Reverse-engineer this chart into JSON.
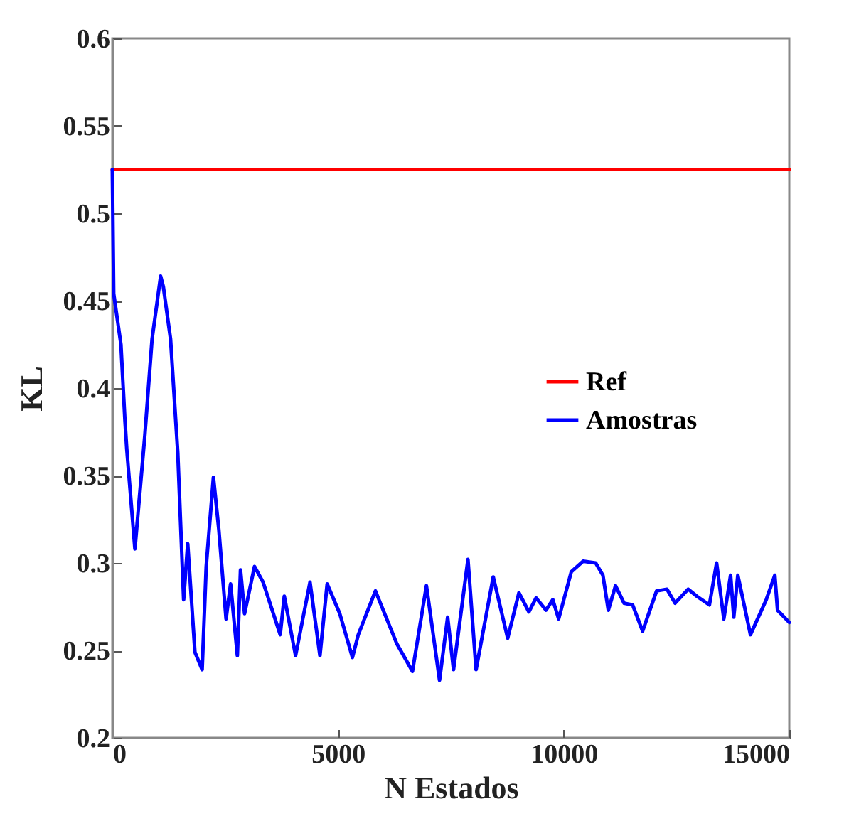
{
  "chart_data": {
    "type": "line",
    "xlabel": "N Estados",
    "ylabel": "KL",
    "xlim": [
      0,
      15000
    ],
    "xticks": [
      0,
      5000,
      10000,
      15000
    ],
    "ylim": [
      0.2,
      0.6
    ],
    "yticks": [
      0.2,
      0.25,
      0.3,
      0.35,
      0.4,
      0.45,
      0.5,
      0.55,
      0.6
    ],
    "grid": false,
    "legend": "right",
    "line_style": "solid",
    "marker": "none",
    "series": [
      {
        "name": "Ref",
        "color": "#ff0000",
        "x": [
          0,
          15000
        ],
        "values": [
          0.525,
          0.525
        ]
      },
      {
        "name": "Amostras",
        "color": "#0000ff",
        "x": [
          0,
          30,
          190,
          280,
          320,
          500,
          720,
          880,
          1070,
          1130,
          1290,
          1450,
          1510,
          1580,
          1670,
          1830,
          1990,
          2080,
          2240,
          2360,
          2520,
          2620,
          2770,
          2840,
          2930,
          3150,
          3340,
          3720,
          3810,
          4060,
          4380,
          4600,
          4760,
          5040,
          5320,
          5450,
          5830,
          6300,
          6650,
          6960,
          7250,
          7430,
          7560,
          7880,
          8060,
          8440,
          8760,
          9010,
          9230,
          9390,
          9610,
          9760,
          9890,
          10170,
          10430,
          10710,
          10870,
          10990,
          11150,
          11340,
          11530,
          11750,
          12060,
          12290,
          12470,
          12760,
          12950,
          13230,
          13390,
          13550,
          13700,
          13770,
          13860,
          14140,
          14490,
          14680,
          14740,
          15000
        ],
        "values": [
          0.525,
          0.454,
          0.425,
          0.381,
          0.365,
          0.308,
          0.373,
          0.428,
          0.464,
          0.458,
          0.428,
          0.363,
          0.324,
          0.279,
          0.311,
          0.249,
          0.239,
          0.298,
          0.349,
          0.319,
          0.268,
          0.288,
          0.247,
          0.296,
          0.271,
          0.298,
          0.289,
          0.259,
          0.281,
          0.247,
          0.289,
          0.247,
          0.288,
          0.271,
          0.246,
          0.259,
          0.284,
          0.254,
          0.238,
          0.287,
          0.233,
          0.269,
          0.239,
          0.302,
          0.239,
          0.292,
          0.257,
          0.283,
          0.272,
          0.28,
          0.273,
          0.279,
          0.268,
          0.295,
          0.301,
          0.3,
          0.293,
          0.273,
          0.287,
          0.277,
          0.276,
          0.261,
          0.284,
          0.285,
          0.277,
          0.285,
          0.281,
          0.276,
          0.3,
          0.268,
          0.293,
          0.269,
          0.293,
          0.259,
          0.279,
          0.293,
          0.273,
          0.266
        ]
      }
    ]
  }
}
